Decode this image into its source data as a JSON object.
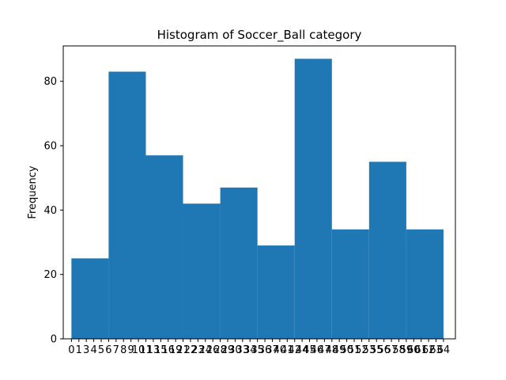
{
  "chart_data": {
    "type": "bar",
    "title": "Histogram of Soccer_Ball category",
    "xlabel": "",
    "ylabel": "Frequency",
    "ylim": [
      0,
      91
    ],
    "yticks": [
      "0",
      "20",
      "40",
      "60",
      "80"
    ],
    "xlim": [
      -2.2,
      103.2
    ],
    "bins": [
      {
        "start": 0,
        "end": 10,
        "value": 25
      },
      {
        "start": 10,
        "end": 20,
        "value": 83
      },
      {
        "start": 20,
        "end": 30,
        "value": 57
      },
      {
        "start": 30,
        "end": 40,
        "value": 42
      },
      {
        "start": 40,
        "end": 50,
        "value": 47
      },
      {
        "start": 50,
        "end": 60,
        "value": 29
      },
      {
        "start": 60,
        "end": 70,
        "value": 87
      },
      {
        "start": 70,
        "end": 80,
        "value": 34
      },
      {
        "start": 80,
        "end": 90,
        "value": 55
      },
      {
        "start": 90,
        "end": 100,
        "value": 34
      }
    ],
    "bar_color": "#1f77b4",
    "grid": false,
    "legend": "none",
    "x_tick_note": "dense overlapping category labels",
    "xticks": [
      {
        "pos": 0,
        "label": "0"
      },
      {
        "pos": 2,
        "label": "1"
      },
      {
        "pos": 4,
        "label": "3"
      },
      {
        "pos": 6,
        "label": "4"
      },
      {
        "pos": 8,
        "label": "5"
      },
      {
        "pos": 10,
        "label": "6"
      },
      {
        "pos": 12,
        "label": "7"
      },
      {
        "pos": 14,
        "label": "8"
      },
      {
        "pos": 16,
        "label": "9"
      },
      {
        "pos": 18,
        "label": "10"
      },
      {
        "pos": 20,
        "label": "11"
      },
      {
        "pos": 22,
        "label": "13"
      },
      {
        "pos": 24,
        "label": "15"
      },
      {
        "pos": 26,
        "label": "16"
      },
      {
        "pos": 28,
        "label": "19"
      },
      {
        "pos": 30,
        "label": "21"
      },
      {
        "pos": 32,
        "label": "22"
      },
      {
        "pos": 34,
        "label": "23"
      },
      {
        "pos": 36,
        "label": "24"
      },
      {
        "pos": 38,
        "label": "26"
      },
      {
        "pos": 40,
        "label": "28"
      },
      {
        "pos": 42,
        "label": "29"
      },
      {
        "pos": 44,
        "label": "30"
      },
      {
        "pos": 46,
        "label": "33"
      },
      {
        "pos": 48,
        "label": "34"
      },
      {
        "pos": 50,
        "label": "35"
      },
      {
        "pos": 52,
        "label": "36"
      },
      {
        "pos": 54,
        "label": "37"
      },
      {
        "pos": 56,
        "label": "40"
      },
      {
        "pos": 58,
        "label": "41"
      },
      {
        "pos": 60,
        "label": "42"
      },
      {
        "pos": 62,
        "label": "44"
      },
      {
        "pos": 64,
        "label": "45"
      },
      {
        "pos": 66,
        "label": "46"
      },
      {
        "pos": 68,
        "label": "47"
      },
      {
        "pos": 70,
        "label": "48"
      },
      {
        "pos": 72,
        "label": "49"
      },
      {
        "pos": 74,
        "label": "50"
      },
      {
        "pos": 76,
        "label": "51"
      },
      {
        "pos": 78,
        "label": "52"
      },
      {
        "pos": 80,
        "label": "53"
      },
      {
        "pos": 82,
        "label": "55"
      },
      {
        "pos": 84,
        "label": "56"
      },
      {
        "pos": 86,
        "label": "57"
      },
      {
        "pos": 88,
        "label": "58"
      },
      {
        "pos": 90,
        "label": "59"
      },
      {
        "pos": 92,
        "label": "60"
      },
      {
        "pos": 94,
        "label": "61"
      },
      {
        "pos": 96,
        "label": "62"
      },
      {
        "pos": 98,
        "label": "63"
      },
      {
        "pos": 100,
        "label": "64"
      }
    ]
  }
}
